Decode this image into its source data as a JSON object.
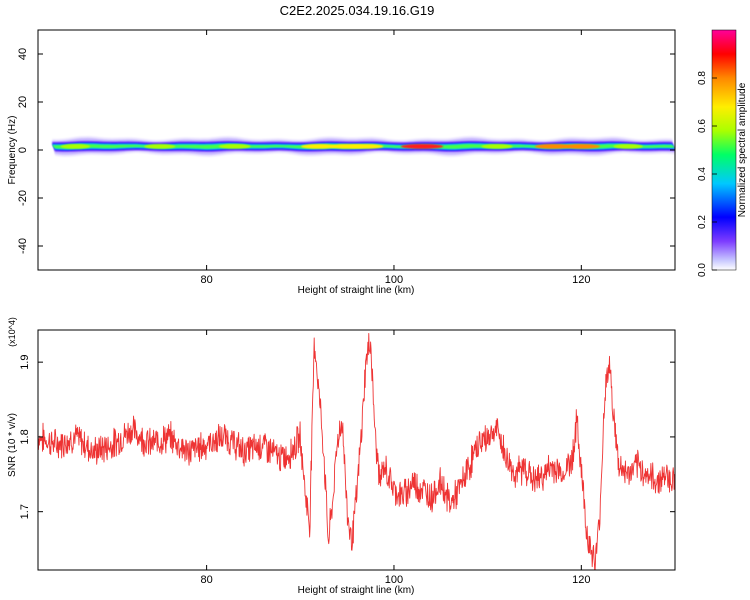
{
  "figure_title": "C2E2.2025.034.19.16.G19",
  "chart_data": [
    {
      "type": "heatmap",
      "title": "C2E2.2025.034.19.16.G19",
      "xlabel": "Height of straight line (km)",
      "ylabel": "Frequency (Hz)",
      "xlim": [
        62,
        130
      ],
      "ylim": [
        -50,
        50
      ],
      "x_ticks": [
        80,
        100,
        120
      ],
      "y_ticks": [
        -40,
        -20,
        0,
        20,
        40
      ],
      "colorbar": {
        "label": "Normalized spectral amplitude",
        "range": [
          0.0,
          1.0
        ],
        "ticks": [
          "0.0",
          "0.2",
          "0.4",
          "0.6",
          "0.8"
        ],
        "colors": [
          "#ffffff",
          "#c8c8ff",
          "#7d3cff",
          "#0000ff",
          "#00c8ff",
          "#00ff66",
          "#aaff00",
          "#ffee00",
          "#ff8800",
          "#ff0000",
          "#ff0099"
        ]
      },
      "band": {
        "center_frequency": 1.5,
        "peaks": [
          {
            "x": 66,
            "amp": 0.55
          },
          {
            "x": 75,
            "amp": 0.6
          },
          {
            "x": 83,
            "amp": 0.62
          },
          {
            "x": 92,
            "amp": 0.75
          },
          {
            "x": 95,
            "amp": 0.7
          },
          {
            "x": 97,
            "amp": 0.72
          },
          {
            "x": 103,
            "amp": 0.95
          },
          {
            "x": 111,
            "amp": 0.6
          },
          {
            "x": 117,
            "amp": 0.78
          },
          {
            "x": 120,
            "amp": 0.8
          },
          {
            "x": 125,
            "amp": 0.55
          }
        ]
      }
    },
    {
      "type": "line",
      "xlabel": "Height of straight line (km)",
      "ylabel": "SNR (10 * v/v)",
      "y_multiplier": "(x10^4)",
      "xlim": [
        62,
        130
      ],
      "ylim": [
        1.622,
        1.943
      ],
      "x_ticks": [
        80,
        100,
        120
      ],
      "y_ticks": [
        1.7,
        1.8,
        1.9
      ],
      "line_color": "#ee3333",
      "series": [
        {
          "x": [
            62,
            64,
            66,
            68,
            70,
            72,
            74,
            76,
            78,
            80,
            82,
            84,
            86,
            88,
            89,
            90,
            90.5,
            91,
            91.5,
            92,
            92.5,
            93,
            93.5,
            94,
            94.5,
            95,
            95.5,
            96,
            96.5,
            97,
            97.5,
            98,
            98.5,
            99,
            100,
            101,
            102,
            103,
            104,
            105,
            106,
            107,
            108,
            109,
            110,
            111,
            112,
            113,
            114,
            115,
            116,
            117,
            118,
            119,
            119.5,
            120,
            120.5,
            121,
            121.5,
            122,
            122.5,
            123,
            123.5,
            124,
            125,
            126,
            127,
            128,
            129,
            130
          ],
          "y": [
            1.8,
            1.79,
            1.8,
            1.78,
            1.79,
            1.81,
            1.79,
            1.8,
            1.78,
            1.79,
            1.8,
            1.78,
            1.79,
            1.77,
            1.78,
            1.8,
            1.73,
            1.68,
            1.93,
            1.86,
            1.78,
            1.66,
            1.72,
            1.8,
            1.82,
            1.7,
            1.66,
            1.72,
            1.8,
            1.9,
            1.93,
            1.8,
            1.74,
            1.76,
            1.73,
            1.72,
            1.74,
            1.73,
            1.72,
            1.74,
            1.71,
            1.73,
            1.76,
            1.79,
            1.8,
            1.81,
            1.77,
            1.75,
            1.76,
            1.74,
            1.75,
            1.76,
            1.75,
            1.77,
            1.82,
            1.76,
            1.68,
            1.65,
            1.63,
            1.7,
            1.86,
            1.9,
            1.82,
            1.76,
            1.75,
            1.76,
            1.75,
            1.74,
            1.75,
            1.74
          ]
        }
      ]
    }
  ]
}
